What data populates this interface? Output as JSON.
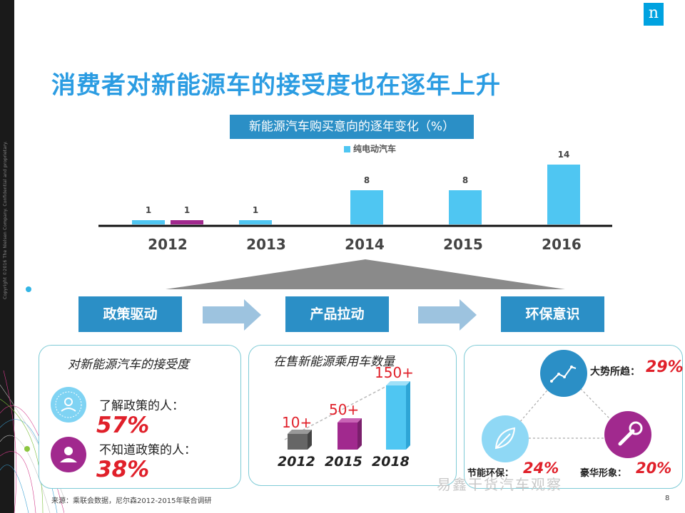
{
  "sidebar": {
    "copyright": "Copyright ©2016 The Nielsen Company. Confidential and proprietary."
  },
  "logo": {
    "glyph": "n"
  },
  "title": "消费者对新能源车的接受度也在逐年上升",
  "chart_data": {
    "type": "bar",
    "title": "新能源汽车购买意向的逐年变化（%）",
    "legend": [
      "纯电动汽车"
    ],
    "categories": [
      "2012",
      "2013",
      "2014",
      "2015",
      "2016"
    ],
    "series": [
      {
        "name": "纯电动汽车",
        "values": [
          1,
          1,
          8,
          8,
          14
        ],
        "color": "#4fc6f2"
      },
      {
        "name": "",
        "values": [
          1,
          null,
          null,
          null,
          null
        ],
        "color": "#a1298e"
      }
    ],
    "value_labels": [
      "1",
      "1",
      "1",
      "8",
      "8",
      "14"
    ],
    "ylim": [
      0,
      14
    ]
  },
  "drivers": {
    "policy": "政策驱动",
    "product": "产品拉动",
    "environment": "环保意识"
  },
  "panel_accept": {
    "title": "对新能源汽车的接受度",
    "aware_label": "了解政策的人：",
    "aware_value": "57%",
    "unaware_label": "不知道政策的人：",
    "unaware_value": "38%"
  },
  "panel_count": {
    "title": "在售新能源乘用车数量",
    "bars": [
      {
        "year": "2012",
        "label": "10+",
        "color": "#666666"
      },
      {
        "year": "2015",
        "label": "50+",
        "color": "#a1298e"
      },
      {
        "year": "2018",
        "label": "150+",
        "color": "#4fc6f2"
      }
    ]
  },
  "panel_env": {
    "trend_label": "大势所趋：",
    "trend_value": "29%",
    "eco_label": "节能环保：",
    "eco_value": "24%",
    "luxury_label": "豪华形象：",
    "luxury_value": "20%"
  },
  "footer": {
    "source": "来源：乘联会数据，尼尔森2012-2015年联合调研",
    "page": "8",
    "watermark": "易鑫干货汽车观察"
  },
  "colors": {
    "accent": "#2b8fc6",
    "title": "#2b9ce2",
    "bar": "#4fc6f2",
    "purple": "#a1298e",
    "red": "#e0202a"
  }
}
